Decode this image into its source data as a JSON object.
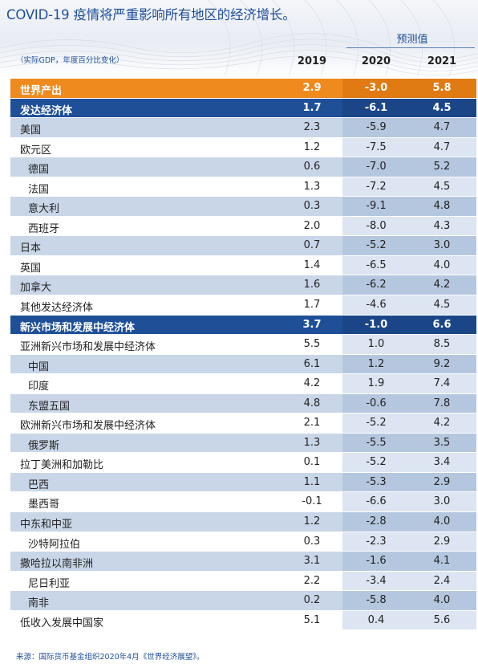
{
  "title": "COVID-19 疫情将严重影响所有地区的经济增长。",
  "projection_label": "预测值",
  "units": "（实际GDP，年度百分比变化）",
  "columns": [
    "2019",
    "2020",
    "2021"
  ],
  "rows": [
    {
      "name": "世界产出",
      "type": "world",
      "v": [
        "2.9",
        "-3.0",
        "5.8"
      ]
    },
    {
      "name": "发达经济体",
      "type": "group",
      "v": [
        "1.7",
        "-6.1",
        "4.5"
      ]
    },
    {
      "name": "美国",
      "type": "item",
      "v": [
        "2.3",
        "-5.9",
        "4.7"
      ]
    },
    {
      "name": "欧元区",
      "type": "item",
      "v": [
        "1.2",
        "-7.5",
        "4.7"
      ]
    },
    {
      "name": "德国",
      "type": "sub",
      "v": [
        "0.6",
        "-7.0",
        "5.2"
      ]
    },
    {
      "name": "法国",
      "type": "sub",
      "v": [
        "1.3",
        "-7.2",
        "4.5"
      ]
    },
    {
      "name": "意大利",
      "type": "sub",
      "v": [
        "0.3",
        "-9.1",
        "4.8"
      ]
    },
    {
      "name": "西班牙",
      "type": "sub",
      "v": [
        "2.0",
        "-8.0",
        "4.3"
      ]
    },
    {
      "name": "日本",
      "type": "item",
      "v": [
        "0.7",
        "-5.2",
        "3.0"
      ]
    },
    {
      "name": "英国",
      "type": "item",
      "v": [
        "1.4",
        "-6.5",
        "4.0"
      ]
    },
    {
      "name": "加拿大",
      "type": "item",
      "v": [
        "1.6",
        "-6.2",
        "4.2"
      ]
    },
    {
      "name": "其他发达经济体",
      "type": "item",
      "v": [
        "1.7",
        "-4.6",
        "4.5"
      ]
    },
    {
      "name": "新兴市场和发展中经济体",
      "type": "group",
      "v": [
        "3.7",
        "-1.0",
        "6.6"
      ]
    },
    {
      "name": "亚洲新兴市场和发展中经济体",
      "type": "item",
      "v": [
        "5.5",
        "1.0",
        "8.5"
      ]
    },
    {
      "name": "中国",
      "type": "sub",
      "v": [
        "6.1",
        "1.2",
        "9.2"
      ]
    },
    {
      "name": "印度",
      "type": "sub",
      "v": [
        "4.2",
        "1.9",
        "7.4"
      ]
    },
    {
      "name": "东盟五国",
      "type": "sub",
      "v": [
        "4.8",
        "-0.6",
        "7.8"
      ]
    },
    {
      "name": "欧洲新兴市场和发展中经济体",
      "type": "item",
      "v": [
        "2.1",
        "-5.2",
        "4.2"
      ]
    },
    {
      "name": "俄罗斯",
      "type": "sub",
      "v": [
        "1.3",
        "-5.5",
        "3.5"
      ]
    },
    {
      "name": "拉丁美洲和加勒比",
      "type": "item",
      "v": [
        "0.1",
        "-5.2",
        "3.4"
      ]
    },
    {
      "name": "巴西",
      "type": "sub",
      "v": [
        "1.1",
        "-5.3",
        "2.9"
      ]
    },
    {
      "name": "墨西哥",
      "type": "sub",
      "v": [
        "-0.1",
        "-6.6",
        "3.0"
      ]
    },
    {
      "name": "中东和中亚",
      "type": "item",
      "v": [
        "1.2",
        "-2.8",
        "4.0"
      ]
    },
    {
      "name": "沙特阿拉伯",
      "type": "sub",
      "v": [
        "0.3",
        "-2.3",
        "2.9"
      ]
    },
    {
      "name": "撒哈拉以南非洲",
      "type": "item",
      "v": [
        "3.1",
        "-1.6",
        "4.1"
      ]
    },
    {
      "name": "尼日利亚",
      "type": "sub",
      "v": [
        "2.2",
        "-3.4",
        "2.4"
      ]
    },
    {
      "name": "南非",
      "type": "sub",
      "v": [
        "0.2",
        "-5.8",
        "4.0"
      ]
    },
    {
      "name": "低收入发展中国家",
      "type": "item",
      "v": [
        "5.1",
        "0.4",
        "5.6"
      ]
    }
  ],
  "source": "来源：国际货币基金组织2020年4月《世界经济展望》。",
  "colors": {
    "title_blue": "#1f4e9a",
    "world_orange": "#ef8a1e",
    "group_navy": "#1e4f97",
    "stripe_blue": "#c9d6e8",
    "projection_shade": "#dce5f1"
  }
}
